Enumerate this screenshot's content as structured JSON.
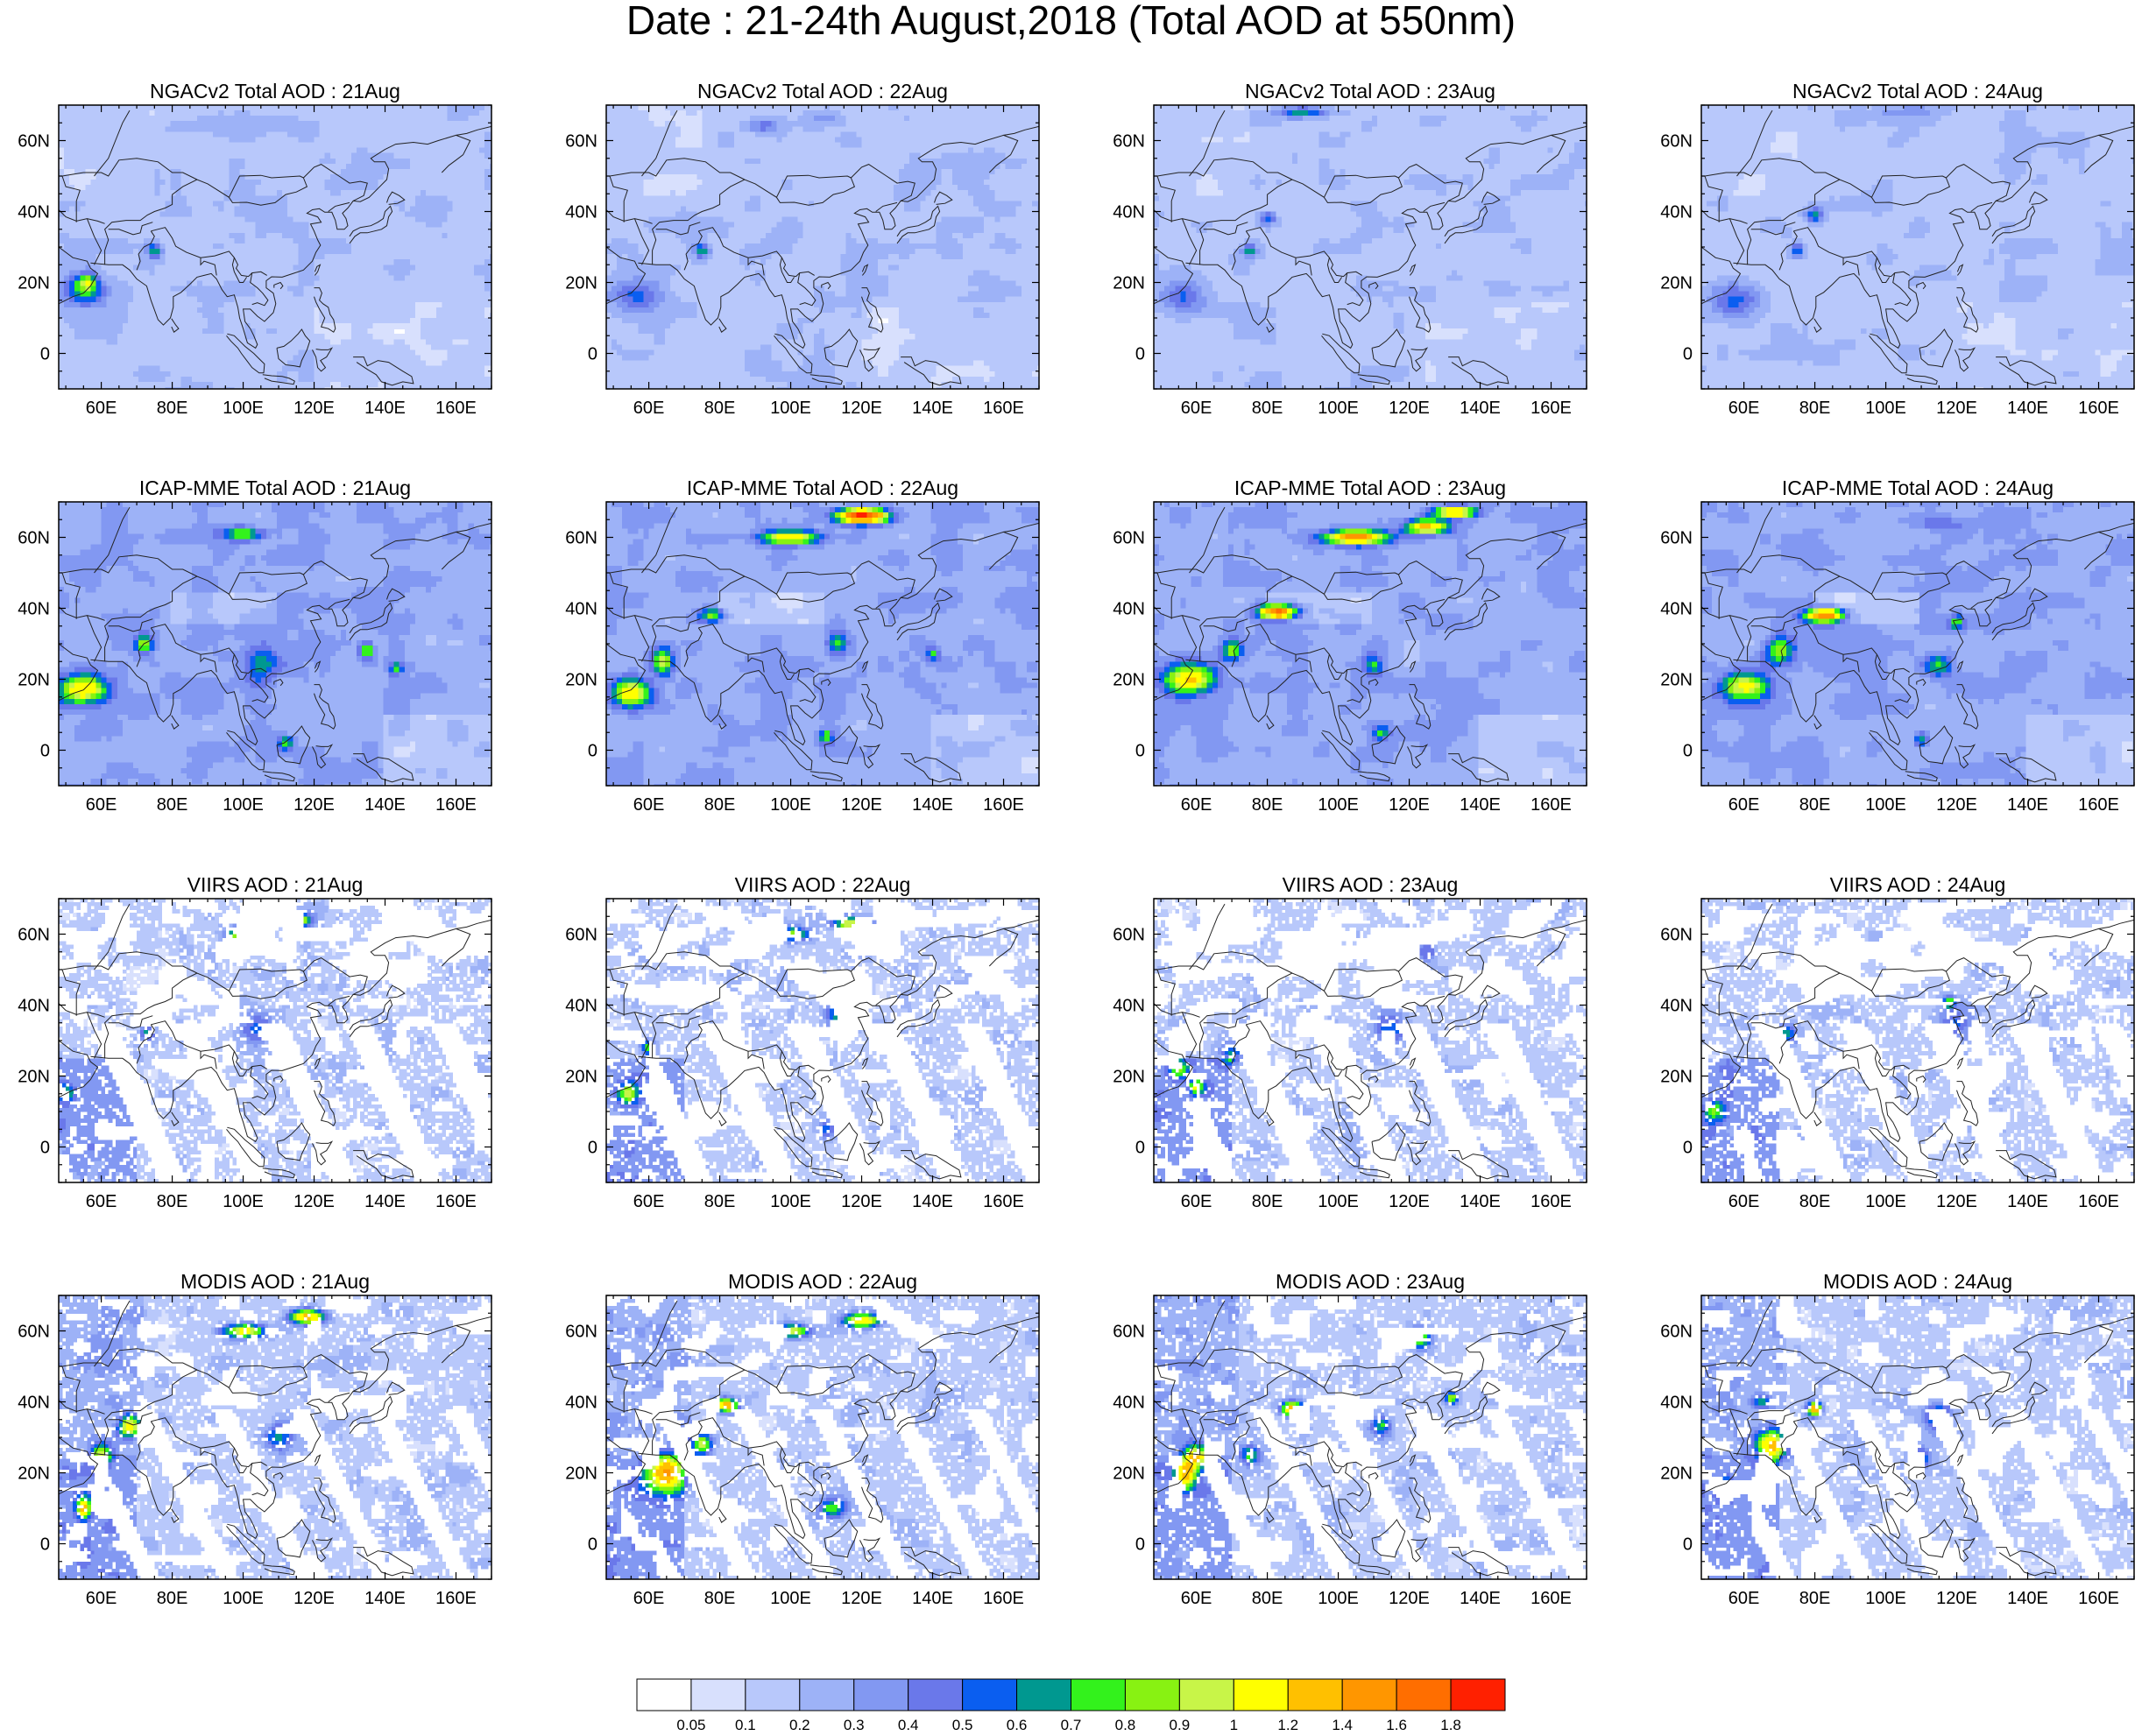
{
  "title": "Date : 21-24th August,2018 (Total AOD at 550nm)",
  "x_ticks": [
    "60E",
    "80E",
    "100E",
    "120E",
    "140E",
    "160E"
  ],
  "y_ticks": [
    "60N",
    "40N",
    "20N",
    "0"
  ],
  "extent": {
    "lon": [
      48,
      170
    ],
    "lat": [
      -10,
      70
    ]
  },
  "panels": [
    {
      "title": "NGACv2 Total AOD : 21Aug",
      "model": "ngac",
      "day": 21
    },
    {
      "title": "NGACv2 Total AOD : 22Aug",
      "model": "ngac",
      "day": 22
    },
    {
      "title": "NGACv2 Total AOD : 23Aug",
      "model": "ngac",
      "day": 23
    },
    {
      "title": "NGACv2 Total AOD : 24Aug",
      "model": "ngac",
      "day": 24
    },
    {
      "title": "ICAP-MME Total AOD : 21Aug",
      "model": "icap",
      "day": 21
    },
    {
      "title": "ICAP-MME Total AOD : 22Aug",
      "model": "icap",
      "day": 22
    },
    {
      "title": "ICAP-MME Total AOD : 23Aug",
      "model": "icap",
      "day": 23
    },
    {
      "title": "ICAP-MME Total AOD : 24Aug",
      "model": "icap",
      "day": 24
    },
    {
      "title": "VIIRS AOD : 21Aug",
      "model": "viirs",
      "day": 21
    },
    {
      "title": "VIIRS AOD : 22Aug",
      "model": "viirs",
      "day": 22
    },
    {
      "title": "VIIRS AOD : 23Aug",
      "model": "viirs",
      "day": 23
    },
    {
      "title": "VIIRS AOD : 24Aug",
      "model": "viirs",
      "day": 24
    },
    {
      "title": "MODIS AOD : 21Aug",
      "model": "modis",
      "day": 21
    },
    {
      "title": "MODIS AOD : 22Aug",
      "model": "modis",
      "day": 22
    },
    {
      "title": "MODIS AOD : 23Aug",
      "model": "modis",
      "day": 23
    },
    {
      "title": "MODIS AOD : 24Aug",
      "model": "modis",
      "day": 24
    }
  ],
  "colorbar": {
    "labels": [
      "0.05",
      "0.1",
      "0.2",
      "0.3",
      "0.4",
      "0.5",
      "0.6",
      "0.7",
      "0.8",
      "0.9",
      "1",
      "1.2",
      "1.4",
      "1.6",
      "1.8"
    ],
    "colors": [
      "#ffffff",
      "#d8e0fd",
      "#b8c8fb",
      "#9db2f7",
      "#8298f2",
      "#6a78ea",
      "#0a5ef0",
      "#009890",
      "#33f21c",
      "#88f212",
      "#c8f548",
      "#ffff00",
      "#ffc000",
      "#ff9600",
      "#ff6e00",
      "#ff2000"
    ]
  }
}
